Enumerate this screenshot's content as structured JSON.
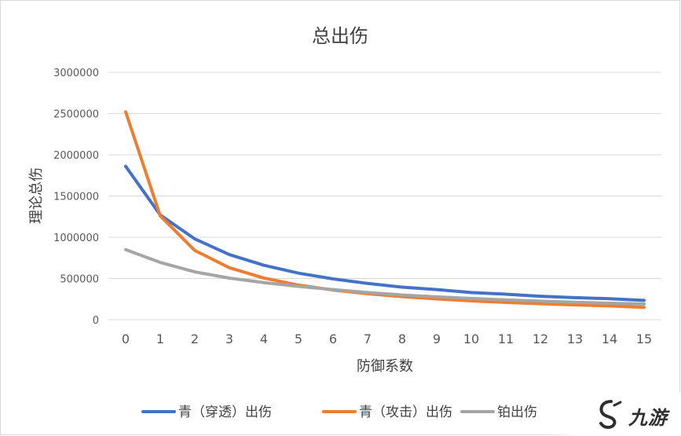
{
  "chart_data": {
    "type": "line",
    "title": "总出伤",
    "xlabel": "防御系数",
    "ylabel": "理论总伤",
    "categories": [
      "0",
      "1",
      "2",
      "3",
      "4",
      "5",
      "6",
      "7",
      "8",
      "9",
      "10",
      "11",
      "12",
      "13",
      "14",
      "15"
    ],
    "ylim": [
      0,
      3000000
    ],
    "yticks": [
      "0",
      "500000",
      "1000000",
      "1500000",
      "2000000",
      "2500000",
      "3000000"
    ],
    "grid": true,
    "legend_position": "bottom",
    "series": [
      {
        "name": "青（穿透）出伤",
        "color": "#4472c4",
        "values": [
          1860000,
          1270000,
          980000,
          790000,
          660000,
          565000,
          495000,
          440000,
          395000,
          365000,
          330000,
          310000,
          285000,
          268000,
          255000,
          235000
        ]
      },
      {
        "name": "青（攻击）出伤",
        "color": "#ed7d31",
        "values": [
          2520000,
          1260000,
          840000,
          630000,
          505000,
          420000,
          360000,
          315000,
          280000,
          252000,
          229000,
          210000,
          194000,
          180000,
          168000,
          150000
        ]
      },
      {
        "name": "铂出伤",
        "color": "#a5a5a5",
        "values": [
          850000,
          695000,
          580000,
          505000,
          450000,
          405000,
          365000,
          330000,
          300000,
          278000,
          258000,
          240000,
          225000,
          212000,
          200000,
          190000
        ]
      }
    ]
  },
  "watermark": {
    "text": "九游"
  }
}
